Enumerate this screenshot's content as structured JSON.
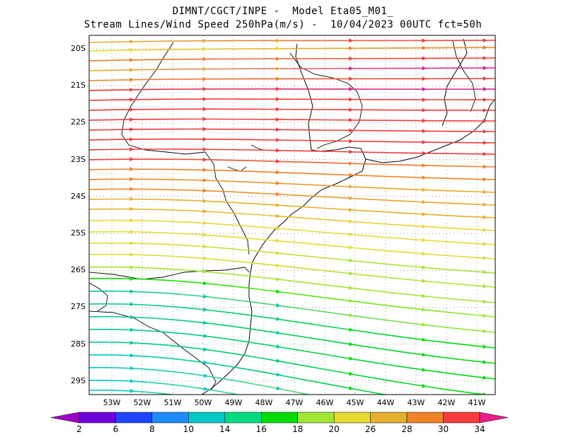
{
  "title": {
    "line1": "DIMNT/CGCT/INPE -  Model Eta05_M01_",
    "line2": "Stream Lines/Wind Speed 250hPa(m/s) -  10/04/2023 00UTC fct=50h"
  },
  "map": {
    "lat_labels": [
      "20S",
      "21S",
      "22S",
      "23S",
      "24S",
      "25S",
      "26S",
      "27S",
      "28S",
      "29S"
    ],
    "lon_labels": [
      "53W",
      "52W",
      "51W",
      "50W",
      "49W",
      "48W",
      "47W",
      "46W",
      "45W",
      "44W",
      "43W",
      "42W",
      "41W"
    ],
    "grid": "dotted"
  },
  "colorbar": {
    "labels": [
      "2",
      "6",
      "8",
      "10",
      "14",
      "16",
      "18",
      "20",
      "26",
      "28",
      "30",
      "34"
    ],
    "colors": [
      "#a000c8",
      "#6e00dc",
      "#2146ff",
      "#1e8cff",
      "#00c8c8",
      "#00dc82",
      "#00dc00",
      "#a0e632",
      "#e6dc32",
      "#e6af2d",
      "#f08228",
      "#fa3c3c",
      "#e61e8c"
    ]
  },
  "legend_colors": {
    "red": "#f03c3c",
    "magenta": "#d81e96",
    "orange": "#f08228",
    "gold": "#e6af2d",
    "yellow": "#e6dc32",
    "lime": "#a0e632",
    "green": "#00dc00",
    "teal": "#00c8a0",
    "cyan": "#00c8c8"
  }
}
